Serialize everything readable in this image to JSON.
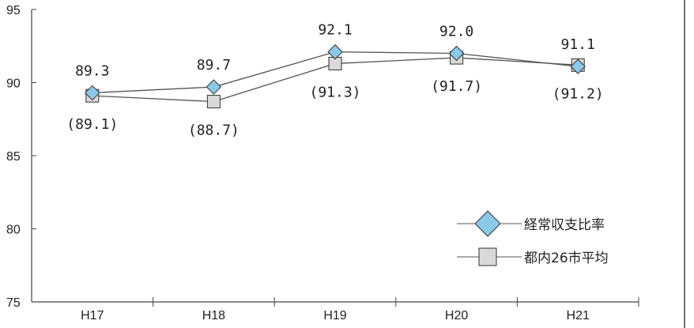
{
  "chart_data": {
    "type": "line",
    "title": "",
    "xlabel": "",
    "ylabel": "",
    "categories": [
      "H17",
      "H18",
      "H19",
      "H20",
      "H21"
    ],
    "ylim": [
      75,
      95
    ],
    "yticks": [
      "75",
      "80",
      "85",
      "90",
      "95"
    ],
    "grid": false,
    "legend_position": "bottom-right",
    "series": [
      {
        "name": "経常収支比率",
        "marker": "diamond",
        "color": "#8cc8e8",
        "values": [
          89.3,
          89.7,
          92.1,
          92.0,
          91.1
        ],
        "labels": [
          "89.3",
          "89.7",
          "92.1",
          "92.0",
          "91.1"
        ]
      },
      {
        "name": "都内26市平均",
        "marker": "square",
        "color": "#d9d9d9",
        "values": [
          89.1,
          88.7,
          91.3,
          91.7,
          91.2
        ],
        "labels": [
          "(89.1)",
          "(88.7)",
          "(91.3)",
          "(91.7)",
          "(91.2)"
        ]
      }
    ]
  }
}
